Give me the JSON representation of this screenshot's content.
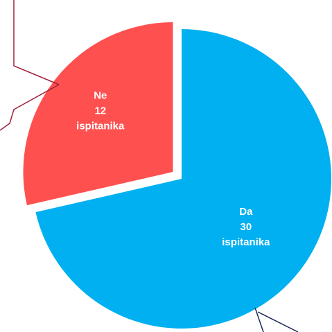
{
  "chart_data": {
    "type": "pie",
    "categories": [
      "Da",
      "Ne"
    ],
    "values": [
      30,
      12
    ],
    "value_labels": [
      "30 ispitanika",
      "12 ispitanika"
    ],
    "colors": [
      "#00b0f0",
      "#ff5050"
    ]
  }
}
